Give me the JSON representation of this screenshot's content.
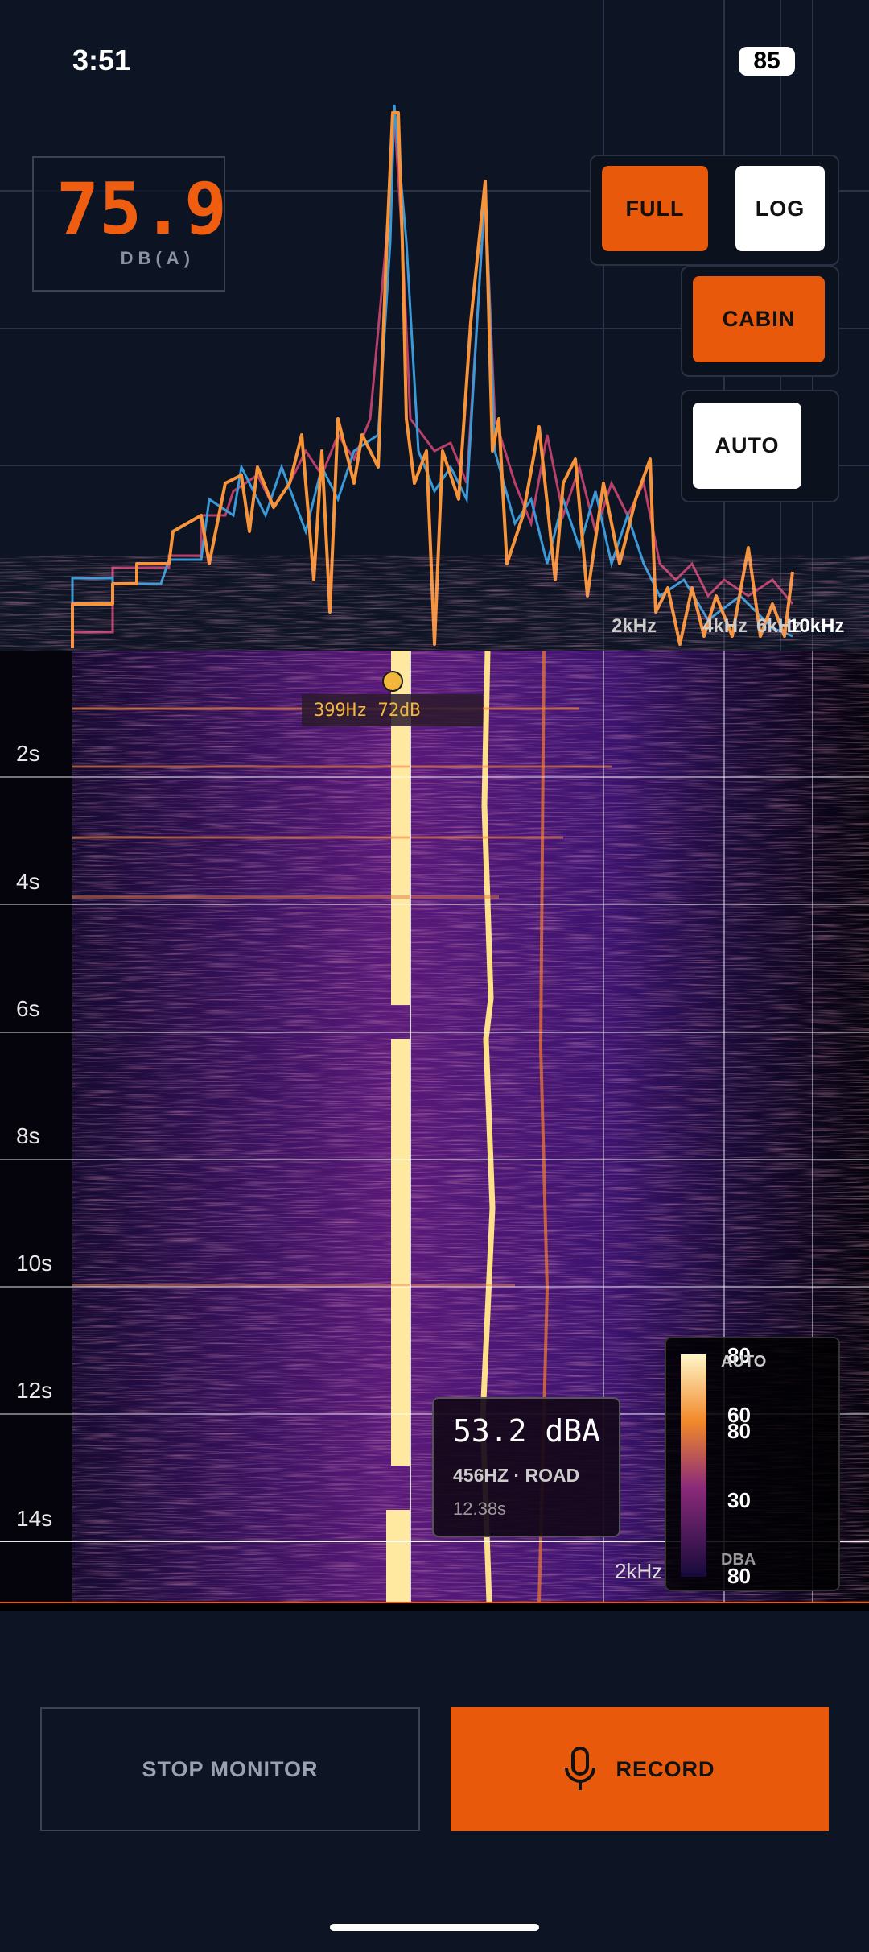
{
  "status_bar": {
    "time": "3:51",
    "battery": "85"
  },
  "level": {
    "value": "75.9",
    "unit": "DB(A)"
  },
  "controls": {
    "range": "FULL",
    "scale": "LOG",
    "weighting": "CABIN",
    "gain": "AUTO"
  },
  "spectrum": {
    "freq_labels": [
      "2kHz",
      "4kHz",
      "6kHz",
      "10kHz"
    ]
  },
  "spectrogram": {
    "cursor_label": "399Hz 72dB",
    "time_labels": [
      "2s",
      "4s",
      "6s",
      "8s",
      "10s",
      "12s",
      "14s"
    ],
    "freq_label": "2kHz"
  },
  "tooltip": {
    "level": "53.2 dBA",
    "detail": "456HZ · ROAD",
    "time": "12.38s"
  },
  "legend": {
    "labels": [
      "80",
      "AUTO",
      "60",
      "80",
      "30",
      "DBA",
      "80"
    ]
  },
  "actions": {
    "stop": "STOP MONITOR",
    "record": "RECORD"
  }
}
